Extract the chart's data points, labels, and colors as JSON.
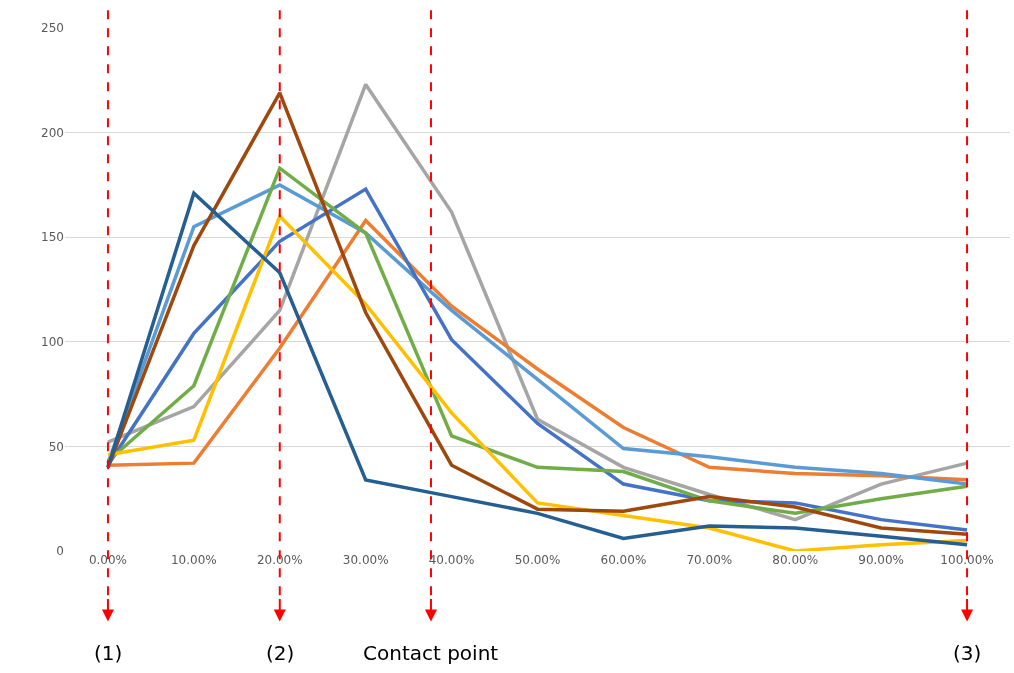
{
  "chart_data": {
    "type": "line",
    "x": [
      0,
      10,
      20,
      30,
      40,
      50,
      60,
      70,
      80,
      90,
      100
    ],
    "xlim": [
      -5,
      105
    ],
    "xticks": [
      {
        "value": 0,
        "label": "0.00%"
      },
      {
        "value": 10,
        "label": "10.00%"
      },
      {
        "value": 20,
        "label": "20.00%"
      },
      {
        "value": 30,
        "label": "30.00%"
      },
      {
        "value": 40,
        "label": "40.00%"
      },
      {
        "value": 50,
        "label": "50.00%"
      },
      {
        "value": 60,
        "label": "60.00%"
      },
      {
        "value": 70,
        "label": "70.00%"
      },
      {
        "value": 80,
        "label": "80.00%"
      },
      {
        "value": 90,
        "label": "90.00%"
      },
      {
        "value": 100,
        "label": "100.00%"
      }
    ],
    "ylim": [
      0,
      250
    ],
    "yticks": [
      0,
      50,
      100,
      150,
      200,
      250
    ],
    "grid": "y",
    "marker": "none",
    "line_style": "solid",
    "series": [
      {
        "color": "#a5a5a5",
        "values": [
          52,
          69,
          115,
          223,
          162,
          63,
          40,
          27,
          15,
          32,
          42
        ]
      },
      {
        "color": "#ed7d31",
        "values": [
          41,
          42,
          97,
          158,
          117,
          87,
          59,
          40,
          37,
          36,
          34
        ]
      },
      {
        "color": "#5b9bd5",
        "values": [
          42,
          155,
          175,
          152,
          115,
          82,
          49,
          45,
          40,
          37,
          32
        ]
      },
      {
        "color": "#4472c4",
        "values": [
          41,
          104,
          148,
          173,
          101,
          61,
          32,
          24,
          23,
          15,
          10
        ]
      },
      {
        "color": "#70ad47",
        "values": [
          43,
          79,
          183,
          152,
          55,
          40,
          38,
          24,
          18,
          25,
          31
        ]
      },
      {
        "color": "#ffc000",
        "values": [
          46,
          53,
          160,
          118,
          66,
          23,
          17,
          11,
          0,
          3,
          5
        ]
      },
      {
        "color": "#9e480e",
        "values": [
          40,
          146,
          219,
          114,
          41,
          20,
          19,
          26,
          21,
          11,
          8
        ]
      },
      {
        "color": "#255e91",
        "values": [
          40,
          171,
          133,
          34,
          26,
          18,
          6,
          12,
          11,
          7,
          3
        ]
      }
    ],
    "ref_lines": [
      {
        "axis": "x",
        "value": 0,
        "color": "#ff0000",
        "line_style": "dashed"
      },
      {
        "axis": "x",
        "value": 20,
        "color": "#ff0000",
        "line_style": "dashed"
      },
      {
        "axis": "x",
        "value": 37.6,
        "label": "Contact point",
        "color": "#ff0000",
        "line_style": "dashed"
      },
      {
        "axis": "x",
        "value": 100,
        "color": "#ff0000",
        "line_style": "dashed"
      }
    ],
    "annotations": [
      {
        "text": "(1)",
        "x": 0
      },
      {
        "text": "(2)",
        "x": 20
      },
      {
        "text": "(3)",
        "x": 100
      }
    ]
  }
}
